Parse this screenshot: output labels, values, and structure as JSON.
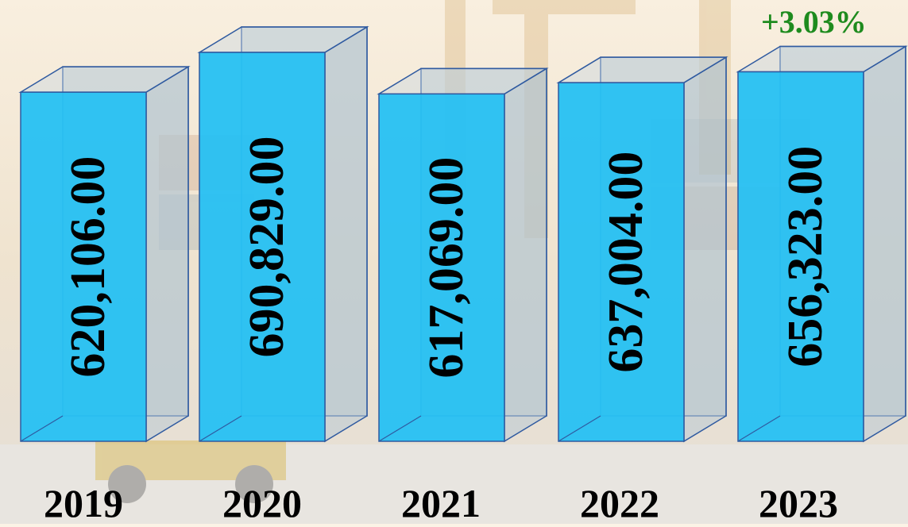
{
  "chart_data": {
    "type": "bar",
    "categories": [
      "2019",
      "2020",
      "2021",
      "2022",
      "2023"
    ],
    "values": [
      620106.0,
      690829.0,
      617069.0,
      637004.0,
      656323.0
    ],
    "value_labels": [
      "620,106.00",
      "690,829.00",
      "617,069.00",
      "637,004.00",
      "656,323.00"
    ],
    "annotation": "+3.03%",
    "title": "",
    "xlabel": "",
    "ylabel": "",
    "style": "3d-bar",
    "bar_color": "#29c1f2",
    "edge_color": "#2f5aa0",
    "value_label_orientation": "vertical",
    "grid": false,
    "legend": "none"
  },
  "colors": {
    "annotation": "#1e8b1e",
    "text": "#000000"
  }
}
